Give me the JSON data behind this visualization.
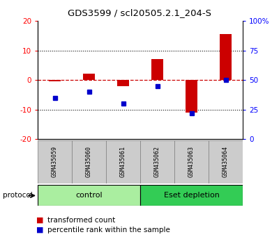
{
  "title": "GDS3599 / scl20505.2.1_204-S",
  "samples": [
    "GSM435059",
    "GSM435060",
    "GSM435061",
    "GSM435062",
    "GSM435063",
    "GSM435064"
  ],
  "red_bars": [
    -0.5,
    2.2,
    -2.0,
    7.0,
    -11.0,
    15.5
  ],
  "blue_values_pct": [
    35,
    40,
    30,
    45,
    22,
    50
  ],
  "ylim_left": [
    -20,
    20
  ],
  "ylim_right": [
    0,
    100
  ],
  "yticks_left": [
    -20,
    -10,
    0,
    10,
    20
  ],
  "yticks_right": [
    0,
    25,
    50,
    75,
    100
  ],
  "ytick_labels_left": [
    "-20",
    "-10",
    "0",
    "10",
    "20"
  ],
  "ytick_labels_right": [
    "0",
    "25",
    "50",
    "75",
    "100%"
  ],
  "groups": [
    {
      "label": "control",
      "start": 0,
      "end": 3,
      "color": "#aaeea0"
    },
    {
      "label": "Eset depletion",
      "start": 3,
      "end": 6,
      "color": "#33cc55"
    }
  ],
  "protocol_label": "protocol",
  "bar_color": "#cc0000",
  "blue_color": "#0000cc",
  "dashed_line_color": "#cc0000",
  "grid_color": "#000000",
  "legend_red_label": "transformed count",
  "legend_blue_label": "percentile rank within the sample",
  "bar_width": 0.35,
  "blue_marker_size": 5,
  "sample_box_color": "#cccccc",
  "sample_box_edge": "#888888",
  "bg_color": "white"
}
